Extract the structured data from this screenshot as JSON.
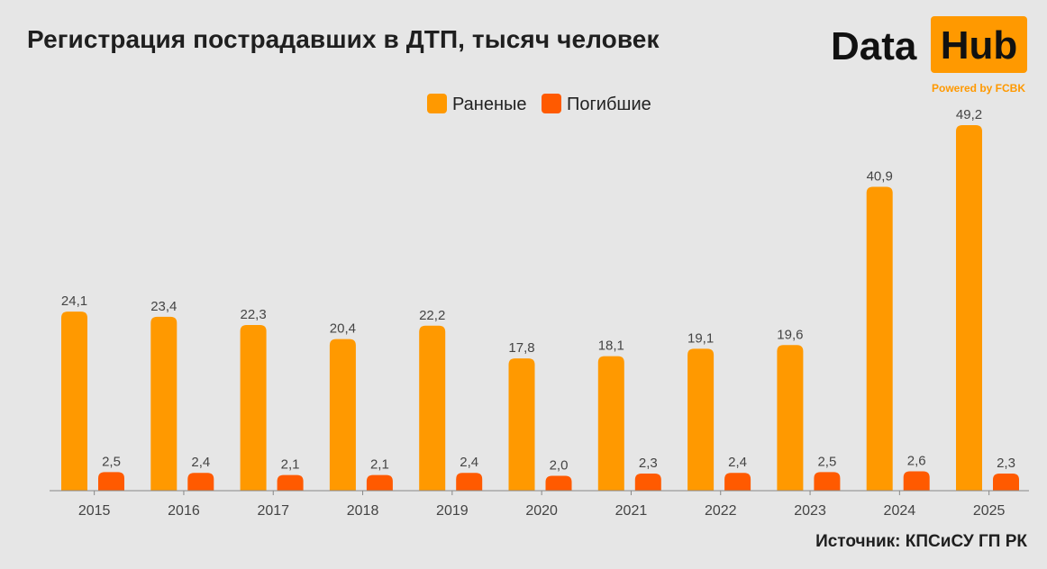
{
  "header": {
    "title": "Регистрация пострадавших в ДТП, тысяч человек"
  },
  "logo": {
    "word1": "Data",
    "word2": "Hub",
    "tagline": "Powered by FCBK"
  },
  "footer": {
    "source": "Источник: КПСиСУ ГП РК"
  },
  "colors": {
    "background": "#e6e6e6",
    "injured": "#ff9900",
    "killed": "#ff5a00",
    "axis": "#888888",
    "text": "#444444"
  },
  "chart_data": {
    "type": "bar",
    "title": "Регистрация пострадавших в ДТП, тысяч человек",
    "xlabel": "",
    "ylabel": "",
    "categories": [
      "2015",
      "2016",
      "2017",
      "2018",
      "2019",
      "2020",
      "2021",
      "2022",
      "2023",
      "2024",
      "2025"
    ],
    "category_labels": [
      "2015",
      "2016",
      "2017",
      "2018",
      "2019",
      "2020",
      "2021",
      "2022",
      "2023",
      "2024",
      "2025"
    ],
    "series": [
      {
        "name": "Раненые",
        "color": "#ff9900",
        "values": [
          24.1,
          23.4,
          22.3,
          20.4,
          22.2,
          17.8,
          18.1,
          19.1,
          19.6,
          40.9,
          49.2
        ],
        "labels": [
          "24,1",
          "23,4",
          "22,3",
          "20,4",
          "22,2",
          "17,8",
          "18,1",
          "19,1",
          "19,6",
          "40,9",
          "49,2"
        ]
      },
      {
        "name": "Погибшие",
        "color": "#ff5a00",
        "values": [
          2.5,
          2.4,
          2.1,
          2.1,
          2.4,
          2.0,
          2.3,
          2.4,
          2.5,
          2.6,
          2.3
        ],
        "labels": [
          "2,5",
          "2,4",
          "2,1",
          "2,1",
          "2,4",
          "2,0",
          "2,3",
          "2,4",
          "2,5",
          "2,6",
          "2,3"
        ]
      }
    ],
    "ylim": [
      0,
      49.2
    ],
    "grid": false,
    "legend_position": "top-center"
  }
}
